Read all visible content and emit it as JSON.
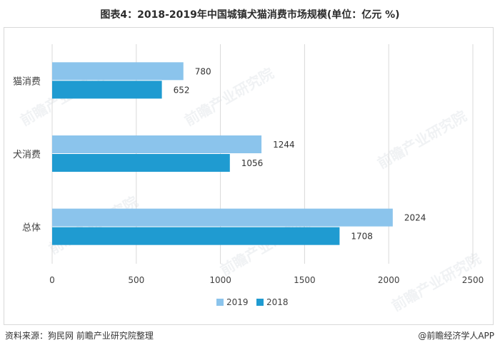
{
  "title": "图表4：2018-2019年中国城镇犬猫消费市场规模(单位：亿元 %)",
  "source": "资料来源：狗民网 前瞻产业研究院整理",
  "brand": "@前瞻经济学人APP",
  "watermark": "前瞻产业研究院",
  "chart_data": {
    "type": "bar",
    "orientation": "horizontal",
    "categories": [
      "猫消费",
      "犬消费",
      "总体"
    ],
    "series": [
      {
        "name": "2019",
        "color": "#8bc4ec",
        "values": [
          780,
          1244,
          2024
        ]
      },
      {
        "name": "2018",
        "color": "#1f9bd1",
        "values": [
          652,
          1056,
          1708
        ]
      }
    ],
    "xlim": [
      0,
      2500
    ],
    "xticks": [
      "0",
      "500",
      "1000",
      "1500",
      "2000",
      "2500"
    ],
    "grid": true,
    "legend_position": "bottom"
  }
}
